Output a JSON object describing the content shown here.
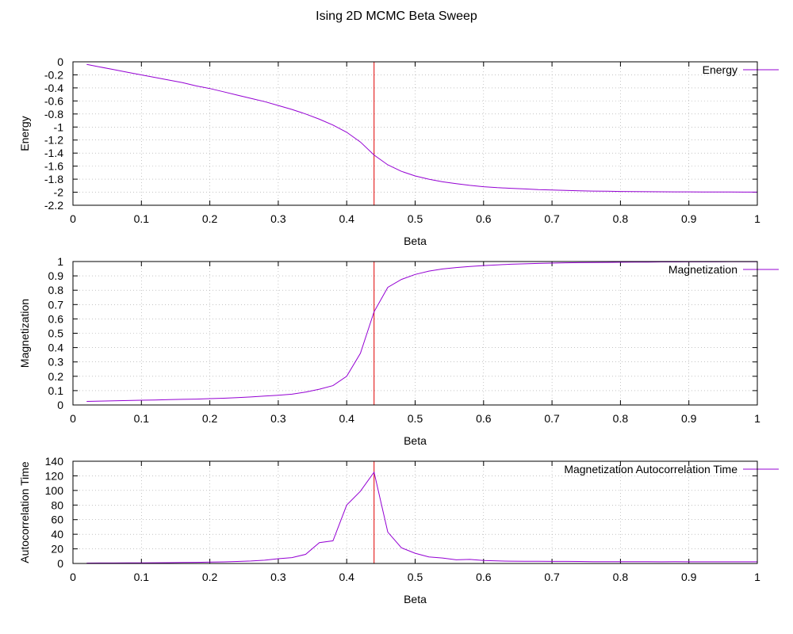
{
  "title": "Ising 2D MCMC Beta Sweep",
  "colors": {
    "series": "#9400d3",
    "critical_line": "#e00000",
    "grid": "#a0a0a0",
    "axis": "#000000"
  },
  "chart_data": [
    {
      "type": "line",
      "xlabel": "Beta",
      "ylabel": "Energy",
      "xlim": [
        0,
        1
      ],
      "ylim": [
        -2.2,
        0
      ],
      "xticks": [
        "0",
        "0.1",
        "0.2",
        "0.3",
        "0.4",
        "0.5",
        "0.6",
        "0.7",
        "0.8",
        "0.9",
        "1"
      ],
      "xtick_values": [
        0,
        0.1,
        0.2,
        0.3,
        0.4,
        0.5,
        0.6,
        0.7,
        0.8,
        0.9,
        1
      ],
      "yticks": [
        "0",
        "-0.2",
        "-0.4",
        "-0.6",
        "-0.8",
        "-1",
        "-1.2",
        "-1.4",
        "-1.6",
        "-1.8",
        "-2",
        "-2.2"
      ],
      "ytick_values": [
        0,
        -0.2,
        -0.4,
        -0.6,
        -0.8,
        -1,
        -1.2,
        -1.4,
        -1.6,
        -1.8,
        -2,
        -2.2
      ],
      "grid": true,
      "legend_position": "top-right",
      "critical_beta": 0.44,
      "series": [
        {
          "name": "Energy",
          "x": [
            0.02,
            0.04,
            0.06,
            0.08,
            0.1,
            0.12,
            0.14,
            0.16,
            0.18,
            0.2,
            0.22,
            0.24,
            0.26,
            0.28,
            0.3,
            0.32,
            0.34,
            0.36,
            0.38,
            0.4,
            0.42,
            0.44,
            0.46,
            0.48,
            0.5,
            0.52,
            0.54,
            0.56,
            0.58,
            0.6,
            0.62,
            0.64,
            0.66,
            0.68,
            0.7,
            0.72,
            0.74,
            0.76,
            0.78,
            0.8,
            0.82,
            0.84,
            0.86,
            0.88,
            0.9,
            0.92,
            0.94,
            0.96,
            0.98,
            1.0
          ],
          "y": [
            -0.04,
            -0.08,
            -0.12,
            -0.16,
            -0.2,
            -0.24,
            -0.28,
            -0.32,
            -0.37,
            -0.41,
            -0.46,
            -0.51,
            -0.56,
            -0.61,
            -0.67,
            -0.73,
            -0.8,
            -0.88,
            -0.97,
            -1.08,
            -1.23,
            -1.43,
            -1.58,
            -1.68,
            -1.75,
            -1.8,
            -1.84,
            -1.87,
            -1.895,
            -1.915,
            -1.93,
            -1.94,
            -1.95,
            -1.96,
            -1.967,
            -1.973,
            -1.978,
            -1.982,
            -1.985,
            -1.988,
            -1.99,
            -1.992,
            -1.993,
            -1.994,
            -1.995,
            -1.996,
            -1.997,
            -1.997,
            -1.998,
            -1.998
          ]
        }
      ]
    },
    {
      "type": "line",
      "xlabel": "Beta",
      "ylabel": "Magnetization",
      "xlim": [
        0,
        1
      ],
      "ylim": [
        0,
        1
      ],
      "xticks": [
        "0",
        "0.1",
        "0.2",
        "0.3",
        "0.4",
        "0.5",
        "0.6",
        "0.7",
        "0.8",
        "0.9",
        "1"
      ],
      "xtick_values": [
        0,
        0.1,
        0.2,
        0.3,
        0.4,
        0.5,
        0.6,
        0.7,
        0.8,
        0.9,
        1
      ],
      "yticks": [
        "0",
        "0.1",
        "0.2",
        "0.3",
        "0.4",
        "0.5",
        "0.6",
        "0.7",
        "0.8",
        "0.9",
        "1"
      ],
      "ytick_values": [
        0,
        0.1,
        0.2,
        0.3,
        0.4,
        0.5,
        0.6,
        0.7,
        0.8,
        0.9,
        1
      ],
      "grid": true,
      "legend_position": "top-right",
      "critical_beta": 0.44,
      "series": [
        {
          "name": "Magnetization",
          "x": [
            0.02,
            0.04,
            0.06,
            0.08,
            0.1,
            0.12,
            0.14,
            0.16,
            0.18,
            0.2,
            0.22,
            0.24,
            0.26,
            0.28,
            0.3,
            0.32,
            0.34,
            0.36,
            0.38,
            0.4,
            0.42,
            0.44,
            0.46,
            0.48,
            0.5,
            0.52,
            0.54,
            0.56,
            0.58,
            0.6,
            0.62,
            0.64,
            0.66,
            0.68,
            0.7,
            0.72,
            0.74,
            0.76,
            0.78,
            0.8,
            0.82,
            0.84,
            0.86,
            0.88,
            0.9,
            0.92,
            0.94,
            0.96,
            0.98,
            1.0
          ],
          "y": [
            0.025,
            0.027,
            0.029,
            0.031,
            0.033,
            0.035,
            0.037,
            0.039,
            0.041,
            0.044,
            0.047,
            0.051,
            0.056,
            0.062,
            0.068,
            0.075,
            0.09,
            0.11,
            0.135,
            0.2,
            0.36,
            0.65,
            0.82,
            0.875,
            0.91,
            0.933,
            0.948,
            0.958,
            0.966,
            0.972,
            0.977,
            0.981,
            0.984,
            0.987,
            0.989,
            0.991,
            0.992,
            0.993,
            0.994,
            0.995,
            0.996,
            0.996,
            0.997,
            0.997,
            0.998,
            0.998,
            0.998,
            0.999,
            0.999,
            0.999
          ]
        }
      ]
    },
    {
      "type": "line",
      "xlabel": "Beta",
      "ylabel": "Autocorrelation Time",
      "xlim": [
        0,
        1
      ],
      "ylim": [
        0,
        140
      ],
      "xticks": [
        "0",
        "0.1",
        "0.2",
        "0.3",
        "0.4",
        "0.5",
        "0.6",
        "0.7",
        "0.8",
        "0.9",
        "1"
      ],
      "xtick_values": [
        0,
        0.1,
        0.2,
        0.3,
        0.4,
        0.5,
        0.6,
        0.7,
        0.8,
        0.9,
        1
      ],
      "yticks": [
        "0",
        "20",
        "40",
        "60",
        "80",
        "100",
        "120",
        "140"
      ],
      "ytick_values": [
        0,
        20,
        40,
        60,
        80,
        100,
        120,
        140
      ],
      "grid": true,
      "legend_position": "top-right",
      "critical_beta": 0.44,
      "series": [
        {
          "name": "Magnetization Autocorrelation Time",
          "x": [
            0.02,
            0.04,
            0.06,
            0.08,
            0.1,
            0.12,
            0.14,
            0.16,
            0.18,
            0.2,
            0.22,
            0.24,
            0.26,
            0.28,
            0.3,
            0.32,
            0.34,
            0.36,
            0.38,
            0.4,
            0.42,
            0.44,
            0.46,
            0.48,
            0.5,
            0.52,
            0.54,
            0.56,
            0.58,
            0.6,
            0.62,
            0.64,
            0.66,
            0.68,
            0.7,
            0.72,
            0.74,
            0.76,
            0.78,
            0.8,
            0.82,
            0.84,
            0.86,
            0.88,
            0.9,
            0.92,
            0.94,
            0.96,
            0.98,
            1.0
          ],
          "y": [
            0.5,
            0.6,
            0.7,
            0.8,
            0.9,
            1.0,
            1.1,
            1.3,
            1.5,
            1.8,
            2.2,
            2.7,
            3.4,
            4.5,
            6.5,
            8,
            12.5,
            28.5,
            31,
            80,
            99,
            125,
            43,
            21.5,
            14,
            9,
            7.5,
            5,
            5.5,
            4,
            3.5,
            3.2,
            3,
            2.9,
            2.8,
            2.8,
            2.7,
            2.5,
            2.5,
            2.4,
            2.4,
            2.4,
            2.3,
            2.4,
            2.3,
            2.3,
            2.3,
            2.3,
            2.3,
            2.3
          ]
        }
      ]
    }
  ]
}
